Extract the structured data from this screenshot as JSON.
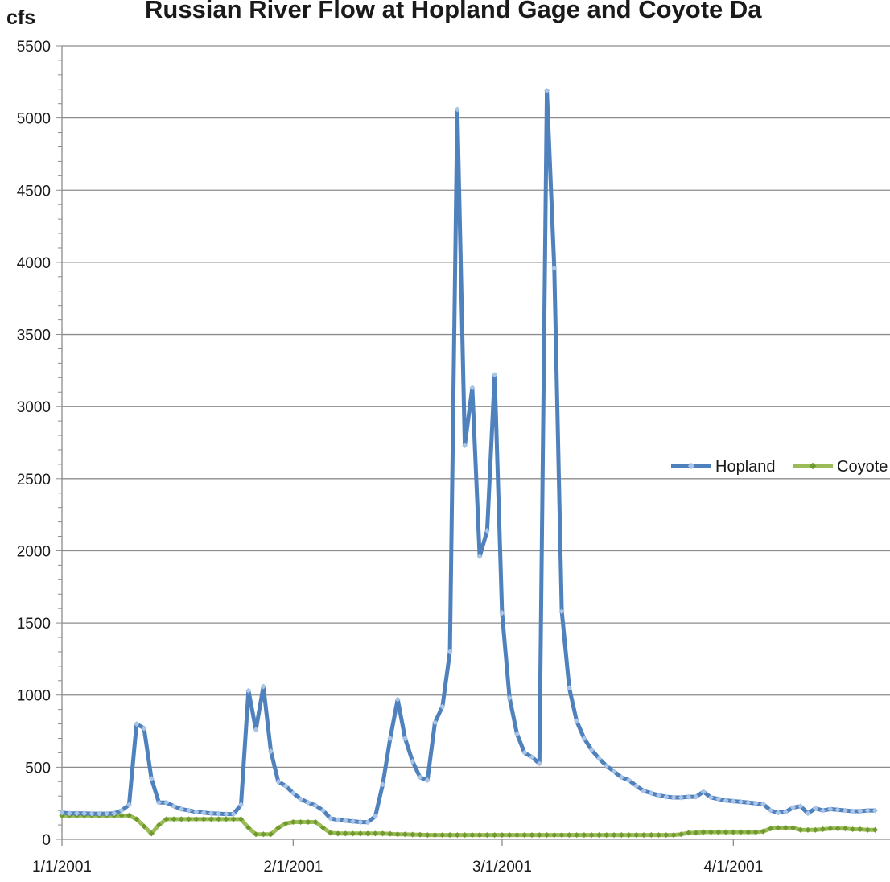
{
  "chart_data": {
    "type": "line",
    "title": "Russian River Flow at Hopland Gage and Coyote Da",
    "ylabel": "cfs",
    "xlabel": "",
    "ylim": [
      0,
      5500
    ],
    "xlim": [
      "2001-01-01",
      "2001-04-22"
    ],
    "grid": true,
    "legend_position": "right",
    "y_ticks": [
      "0",
      "500",
      "1000",
      "1500",
      "2000",
      "2500",
      "3000",
      "3500",
      "4000",
      "4500",
      "5000",
      "5500"
    ],
    "x_ticks": [
      {
        "date": "2001-01-01",
        "label": "1/1/2001"
      },
      {
        "date": "2001-02-01",
        "label": "2/1/2001"
      },
      {
        "date": "2001-03-01",
        "label": "3/1/2001"
      },
      {
        "date": "2001-04-01",
        "label": "4/1/2001"
      }
    ],
    "series": [
      {
        "name": "Hopland",
        "color": "#4F81BD",
        "points": [
          [
            "2001-01-01",
            185
          ],
          [
            "2001-01-02",
            180
          ],
          [
            "2001-01-03",
            180
          ],
          [
            "2001-01-04",
            180
          ],
          [
            "2001-01-05",
            178
          ],
          [
            "2001-01-06",
            178
          ],
          [
            "2001-01-07",
            178
          ],
          [
            "2001-01-08",
            180
          ],
          [
            "2001-01-09",
            200
          ],
          [
            "2001-01-10",
            240
          ],
          [
            "2001-01-11",
            800
          ],
          [
            "2001-01-12",
            770
          ],
          [
            "2001-01-13",
            420
          ],
          [
            "2001-01-14",
            255
          ],
          [
            "2001-01-15",
            255
          ],
          [
            "2001-01-16",
            230
          ],
          [
            "2001-01-17",
            210
          ],
          [
            "2001-01-18",
            200
          ],
          [
            "2001-01-19",
            190
          ],
          [
            "2001-01-20",
            185
          ],
          [
            "2001-01-21",
            180
          ],
          [
            "2001-01-22",
            178
          ],
          [
            "2001-01-23",
            175
          ],
          [
            "2001-01-24",
            175
          ],
          [
            "2001-01-25",
            240
          ],
          [
            "2001-01-26",
            1030
          ],
          [
            "2001-01-27",
            760
          ],
          [
            "2001-01-28",
            1060
          ],
          [
            "2001-01-29",
            610
          ],
          [
            "2001-01-30",
            400
          ],
          [
            "2001-01-31",
            370
          ],
          [
            "2001-02-01",
            320
          ],
          [
            "2001-02-02",
            280
          ],
          [
            "2001-02-03",
            255
          ],
          [
            "2001-02-04",
            235
          ],
          [
            "2001-02-05",
            200
          ],
          [
            "2001-02-06",
            145
          ],
          [
            "2001-02-07",
            135
          ],
          [
            "2001-02-08",
            130
          ],
          [
            "2001-02-09",
            125
          ],
          [
            "2001-02-10",
            120
          ],
          [
            "2001-02-11",
            118
          ],
          [
            "2001-02-12",
            160
          ],
          [
            "2001-02-13",
            380
          ],
          [
            "2001-02-14",
            700
          ],
          [
            "2001-02-15",
            970
          ],
          [
            "2001-02-16",
            700
          ],
          [
            "2001-02-17",
            540
          ],
          [
            "2001-02-18",
            430
          ],
          [
            "2001-02-19",
            410
          ],
          [
            "2001-02-20",
            810
          ],
          [
            "2001-02-21",
            920
          ],
          [
            "2001-02-22",
            1300
          ],
          [
            "2001-02-23",
            5060
          ],
          [
            "2001-02-24",
            2730
          ],
          [
            "2001-02-25",
            3130
          ],
          [
            "2001-02-26",
            1960
          ],
          [
            "2001-02-27",
            2140
          ],
          [
            "2001-02-28",
            3220
          ],
          [
            "2001-03-01",
            1570
          ],
          [
            "2001-03-02",
            980
          ],
          [
            "2001-03-03",
            730
          ],
          [
            "2001-03-04",
            600
          ],
          [
            "2001-03-05",
            570
          ],
          [
            "2001-03-06",
            525
          ],
          [
            "2001-03-07",
            5190
          ],
          [
            "2001-03-08",
            3960
          ],
          [
            "2001-03-09",
            1580
          ],
          [
            "2001-03-10",
            1050
          ],
          [
            "2001-03-11",
            820
          ],
          [
            "2001-03-12",
            700
          ],
          [
            "2001-03-13",
            620
          ],
          [
            "2001-03-14",
            560
          ],
          [
            "2001-03-15",
            510
          ],
          [
            "2001-03-16",
            470
          ],
          [
            "2001-03-17",
            430
          ],
          [
            "2001-03-18",
            410
          ],
          [
            "2001-03-19",
            370
          ],
          [
            "2001-03-20",
            335
          ],
          [
            "2001-03-21",
            320
          ],
          [
            "2001-03-22",
            305
          ],
          [
            "2001-03-23",
            295
          ],
          [
            "2001-03-24",
            290
          ],
          [
            "2001-03-25",
            290
          ],
          [
            "2001-03-26",
            295
          ],
          [
            "2001-03-27",
            295
          ],
          [
            "2001-03-28",
            330
          ],
          [
            "2001-03-29",
            290
          ],
          [
            "2001-03-30",
            280
          ],
          [
            "2001-03-31",
            270
          ],
          [
            "2001-04-01",
            265
          ],
          [
            "2001-04-02",
            260
          ],
          [
            "2001-04-03",
            255
          ],
          [
            "2001-04-04",
            250
          ],
          [
            "2001-04-05",
            245
          ],
          [
            "2001-04-06",
            200
          ],
          [
            "2001-04-07",
            185
          ],
          [
            "2001-04-08",
            190
          ],
          [
            "2001-04-09",
            220
          ],
          [
            "2001-04-10",
            230
          ],
          [
            "2001-04-11",
            180
          ],
          [
            "2001-04-12",
            215
          ],
          [
            "2001-04-13",
            200
          ],
          [
            "2001-04-14",
            210
          ],
          [
            "2001-04-15",
            205
          ],
          [
            "2001-04-16",
            200
          ],
          [
            "2001-04-17",
            195
          ],
          [
            "2001-04-18",
            195
          ],
          [
            "2001-04-19",
            200
          ],
          [
            "2001-04-20",
            200
          ]
        ]
      },
      {
        "name": "Coyote",
        "color": "#9BBB59",
        "points": [
          [
            "2001-01-01",
            165
          ],
          [
            "2001-01-02",
            165
          ],
          [
            "2001-01-03",
            165
          ],
          [
            "2001-01-04",
            165
          ],
          [
            "2001-01-05",
            165
          ],
          [
            "2001-01-06",
            165
          ],
          [
            "2001-01-07",
            165
          ],
          [
            "2001-01-08",
            165
          ],
          [
            "2001-01-09",
            165
          ],
          [
            "2001-01-10",
            165
          ],
          [
            "2001-01-11",
            140
          ],
          [
            "2001-01-12",
            90
          ],
          [
            "2001-01-13",
            40
          ],
          [
            "2001-01-14",
            100
          ],
          [
            "2001-01-15",
            140
          ],
          [
            "2001-01-16",
            140
          ],
          [
            "2001-01-17",
            140
          ],
          [
            "2001-01-18",
            140
          ],
          [
            "2001-01-19",
            140
          ],
          [
            "2001-01-20",
            140
          ],
          [
            "2001-01-21",
            140
          ],
          [
            "2001-01-22",
            140
          ],
          [
            "2001-01-23",
            140
          ],
          [
            "2001-01-24",
            140
          ],
          [
            "2001-01-25",
            140
          ],
          [
            "2001-01-26",
            80
          ],
          [
            "2001-01-27",
            35
          ],
          [
            "2001-01-28",
            35
          ],
          [
            "2001-01-29",
            35
          ],
          [
            "2001-01-30",
            80
          ],
          [
            "2001-01-31",
            110
          ],
          [
            "2001-02-01",
            120
          ],
          [
            "2001-02-02",
            120
          ],
          [
            "2001-02-03",
            120
          ],
          [
            "2001-02-04",
            120
          ],
          [
            "2001-02-05",
            80
          ],
          [
            "2001-02-06",
            45
          ],
          [
            "2001-02-07",
            40
          ],
          [
            "2001-02-08",
            40
          ],
          [
            "2001-02-09",
            40
          ],
          [
            "2001-02-10",
            40
          ],
          [
            "2001-02-11",
            40
          ],
          [
            "2001-02-12",
            40
          ],
          [
            "2001-02-13",
            40
          ],
          [
            "2001-02-14",
            38
          ],
          [
            "2001-02-15",
            35
          ],
          [
            "2001-02-16",
            35
          ],
          [
            "2001-02-17",
            33
          ],
          [
            "2001-02-18",
            32
          ],
          [
            "2001-02-19",
            30
          ],
          [
            "2001-02-20",
            30
          ],
          [
            "2001-02-21",
            30
          ],
          [
            "2001-02-22",
            30
          ],
          [
            "2001-02-23",
            30
          ],
          [
            "2001-02-24",
            30
          ],
          [
            "2001-02-25",
            30
          ],
          [
            "2001-02-26",
            30
          ],
          [
            "2001-02-27",
            30
          ],
          [
            "2001-02-28",
            30
          ],
          [
            "2001-03-01",
            30
          ],
          [
            "2001-03-02",
            30
          ],
          [
            "2001-03-03",
            30
          ],
          [
            "2001-03-04",
            30
          ],
          [
            "2001-03-05",
            30
          ],
          [
            "2001-03-06",
            30
          ],
          [
            "2001-03-07",
            30
          ],
          [
            "2001-03-08",
            30
          ],
          [
            "2001-03-09",
            30
          ],
          [
            "2001-03-10",
            30
          ],
          [
            "2001-03-11",
            30
          ],
          [
            "2001-03-12",
            30
          ],
          [
            "2001-03-13",
            30
          ],
          [
            "2001-03-14",
            30
          ],
          [
            "2001-03-15",
            30
          ],
          [
            "2001-03-16",
            30
          ],
          [
            "2001-03-17",
            30
          ],
          [
            "2001-03-18",
            30
          ],
          [
            "2001-03-19",
            30
          ],
          [
            "2001-03-20",
            30
          ],
          [
            "2001-03-21",
            30
          ],
          [
            "2001-03-22",
            30
          ],
          [
            "2001-03-23",
            30
          ],
          [
            "2001-03-24",
            30
          ],
          [
            "2001-03-25",
            35
          ],
          [
            "2001-03-26",
            45
          ],
          [
            "2001-03-27",
            45
          ],
          [
            "2001-03-28",
            50
          ],
          [
            "2001-03-29",
            50
          ],
          [
            "2001-03-30",
            50
          ],
          [
            "2001-03-31",
            50
          ],
          [
            "2001-04-01",
            50
          ],
          [
            "2001-04-02",
            50
          ],
          [
            "2001-04-03",
            50
          ],
          [
            "2001-04-04",
            50
          ],
          [
            "2001-04-05",
            55
          ],
          [
            "2001-04-06",
            75
          ],
          [
            "2001-04-07",
            80
          ],
          [
            "2001-04-08",
            80
          ],
          [
            "2001-04-09",
            80
          ],
          [
            "2001-04-10",
            65
          ],
          [
            "2001-04-11",
            65
          ],
          [
            "2001-04-12",
            65
          ],
          [
            "2001-04-13",
            70
          ],
          [
            "2001-04-14",
            75
          ],
          [
            "2001-04-15",
            75
          ],
          [
            "2001-04-16",
            75
          ],
          [
            "2001-04-17",
            70
          ],
          [
            "2001-04-18",
            70
          ],
          [
            "2001-04-19",
            65
          ],
          [
            "2001-04-20",
            65
          ]
        ]
      }
    ]
  }
}
